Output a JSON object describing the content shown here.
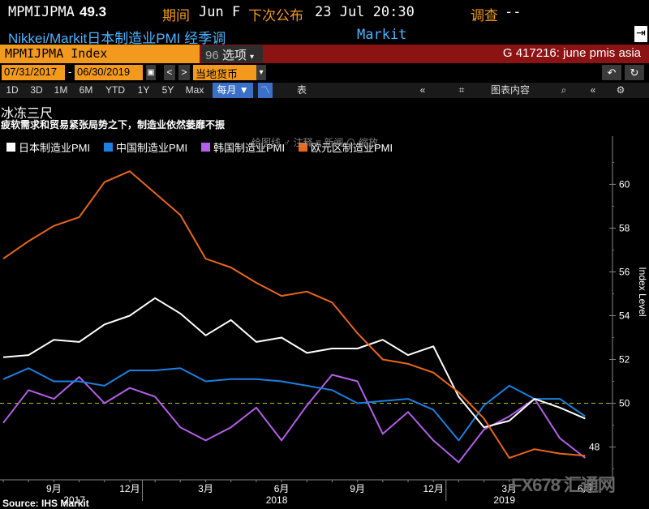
{
  "header": {
    "ticker": "MPMIJPMA",
    "value": "49.3",
    "period_label": "期间",
    "period_value": "Jun F",
    "next_release_label": "下次公布",
    "next_release_value": "23 Jul 20:30",
    "survey_label": "调查",
    "survey_value": "--",
    "description": "Nikkei/Markit日本制造业PMI 经季调",
    "source_short": "Markit"
  },
  "security_bar": {
    "ticker_input": "MPMIJPMA Index",
    "options_icon_text": "96",
    "options_label": "选项",
    "query": "G 417216: june pmis asia"
  },
  "date_bar": {
    "start_date": "07/31/2017",
    "end_date": "06/30/2019",
    "currency": "当地货币",
    "prev_glyph": "<",
    "next_glyph": ">",
    "back_glyph": "↶",
    "refresh_glyph": "↻"
  },
  "toolbar": {
    "periods": [
      "1D",
      "3D",
      "1M",
      "6M",
      "YTD",
      "1Y",
      "5Y",
      "Max"
    ],
    "frequency": "每月",
    "table_label": "表",
    "chart_content_label": "图表内容",
    "collapse_glyph": "«"
  },
  "colors": {
    "japan": "#ffffff",
    "china": "#1e7fe0",
    "korea": "#b260e8",
    "eurozone": "#e8671c",
    "ref_line": "#b8c41e",
    "accent_orange": "#f39a1e",
    "bar_red": "#8c1313"
  },
  "overlay_tools": "绘图线  ♂ 注释  ≡ 新闻  ⊙ 缩放",
  "watermark": "FX678 汇通网",
  "chart_data": {
    "type": "line",
    "title": "冰冻三尺",
    "subtitle": "疲软需求和贸易紧张局势之下，制造业依然萎靡不振",
    "source": "Source: IHS Markit",
    "ylabel": "Index Level",
    "ylim": [
      46.5,
      62.2
    ],
    "y_ticks": [
      48,
      50,
      52,
      54,
      56,
      58,
      60
    ],
    "reference_line": 50,
    "x": [
      "2017-07",
      "2017-08",
      "2017-09",
      "2017-10",
      "2017-11",
      "2017-12",
      "2018-01",
      "2018-02",
      "2018-03",
      "2018-04",
      "2018-05",
      "2018-06",
      "2018-07",
      "2018-08",
      "2018-09",
      "2018-10",
      "2018-11",
      "2018-12",
      "2019-01",
      "2019-02",
      "2019-03",
      "2019-04",
      "2019-05",
      "2019-06"
    ],
    "x_tick_labels": [
      {
        "month": "2017-09",
        "label": "9月"
      },
      {
        "month": "2017-12",
        "label": "12月"
      },
      {
        "month": "2018-03",
        "label": "3月"
      },
      {
        "month": "2018-06",
        "label": "6月"
      },
      {
        "month": "2018-09",
        "label": "9月"
      },
      {
        "month": "2018-12",
        "label": "12月"
      },
      {
        "month": "2019-03",
        "label": "3月"
      },
      {
        "month": "2019-06",
        "label": "6月"
      }
    ],
    "year_labels": [
      {
        "month": "2017-10",
        "label": "2017"
      },
      {
        "month": "2018-06",
        "label": "2018"
      },
      {
        "month": "2019-03",
        "label": "2019"
      }
    ],
    "series": [
      {
        "name": "日本制造业PMI",
        "color": "#ffffff",
        "values": [
          52.1,
          52.2,
          52.9,
          52.8,
          53.6,
          54.0,
          54.8,
          54.1,
          53.1,
          53.8,
          52.8,
          53.0,
          52.3,
          52.5,
          52.5,
          52.9,
          52.2,
          52.6,
          50.3,
          48.9,
          49.2,
          50.2,
          49.8,
          49.3
        ]
      },
      {
        "name": "中国制造业PMI",
        "color": "#1e7fe0",
        "values": [
          51.1,
          51.6,
          51.0,
          51.0,
          50.8,
          51.5,
          51.5,
          51.6,
          51.0,
          51.1,
          51.1,
          51.0,
          50.8,
          50.6,
          50.0,
          50.1,
          50.2,
          49.7,
          48.3,
          49.9,
          50.8,
          50.2,
          50.2,
          49.4
        ]
      },
      {
        "name": "韩国制造业PMI",
        "color": "#b260e8",
        "values": [
          49.1,
          50.6,
          50.2,
          51.2,
          50.0,
          50.7,
          50.3,
          48.9,
          48.3,
          48.9,
          49.8,
          48.3,
          49.9,
          51.3,
          51.0,
          48.6,
          49.6,
          48.3,
          47.3,
          48.8,
          49.4,
          50.2,
          48.4,
          47.5
        ]
      },
      {
        "name": "欧元区制造业PMI",
        "color": "#e8671c",
        "values": [
          56.6,
          57.4,
          58.1,
          58.5,
          60.1,
          60.6,
          59.6,
          58.6,
          56.6,
          56.2,
          55.5,
          54.9,
          55.1,
          54.6,
          53.2,
          52.0,
          51.8,
          51.4,
          50.5,
          49.3,
          47.5,
          47.9,
          47.7,
          47.6
        ]
      }
    ]
  }
}
